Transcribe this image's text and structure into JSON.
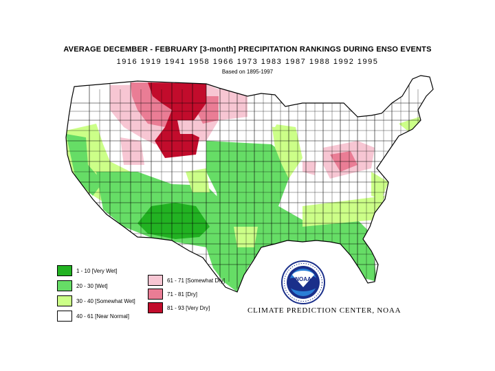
{
  "map": {
    "title": "AVERAGE DECEMBER - FEBRUARY [3-month] PRECIPITATION RANKINGS DURING ENSO EVENTS",
    "years": "1916 1919 1941 1958 1966 1973 1983 1987 1988 1992 1995",
    "basis": "Based on 1895-1997",
    "credit": "CLIMATE PREDICTION CENTER, NOAA",
    "logo_text": "NOAA",
    "colors": {
      "very_wet": "#22b222",
      "wet": "#66dd66",
      "somewhat_wet": "#ccff88",
      "near_normal": "#ffffff",
      "somewhat_dry": "#f7c6d3",
      "dry": "#ea7d95",
      "very_dry": "#c20c2c"
    },
    "legend": [
      {
        "label": "1 - 10 [Very Wet]",
        "color": "#22b222"
      },
      {
        "label": "20 - 30 [Wet]",
        "color": "#66dd66"
      },
      {
        "label": "30 - 40 [Somewhat Wet]",
        "color": "#ccff88"
      },
      {
        "label": "40 - 61 [Near Normal]",
        "color": "#ffffff"
      },
      {
        "label": "61 - 71 [Somewhat Dry]",
        "color": "#f7c6d3"
      },
      {
        "label": "71 - 81 [Dry]",
        "color": "#ea7d95"
      },
      {
        "label": "81 - 93 [Very Dry]",
        "color": "#c20c2c"
      }
    ]
  }
}
